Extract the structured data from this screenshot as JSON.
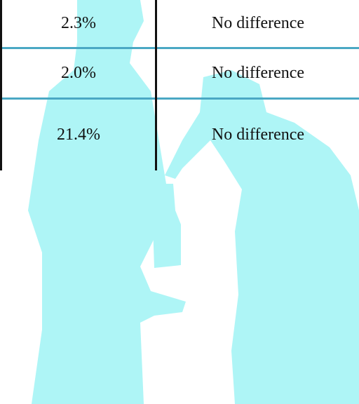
{
  "table": {
    "rows": [
      [
        "2.3%",
        "No difference"
      ],
      [
        "2.0%",
        "No difference"
      ],
      [
        "21.4%",
        "No difference"
      ]
    ]
  }
}
